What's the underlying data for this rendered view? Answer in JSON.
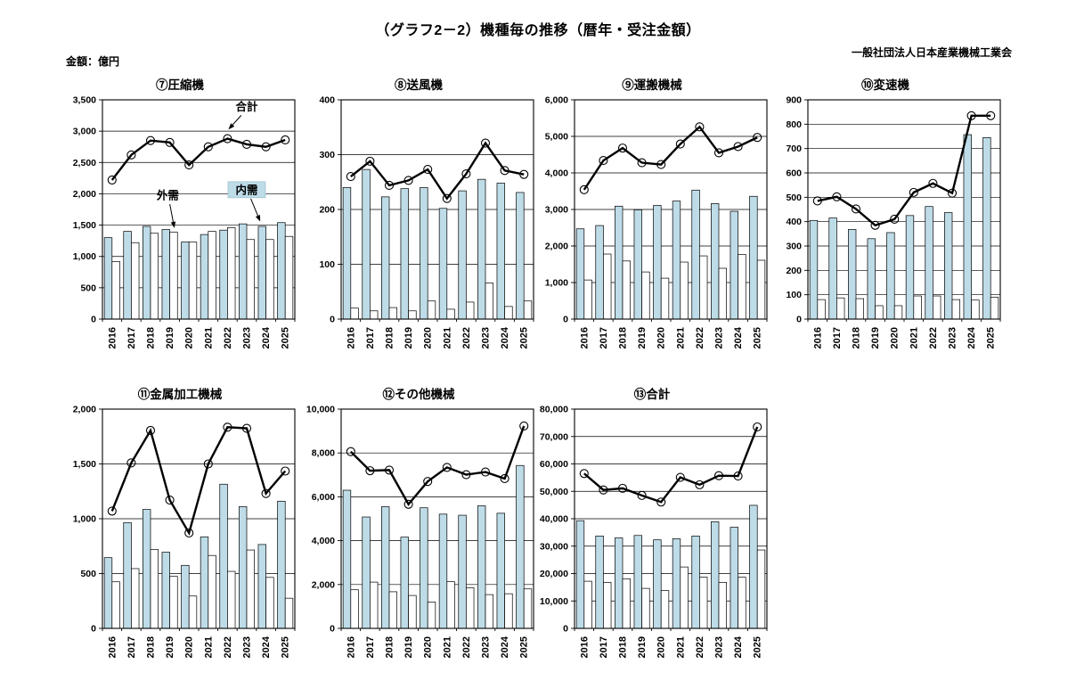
{
  "header": {
    "title": "（グラフ2－2）機種毎の推移（暦年・受注金額）",
    "org": "一般社団法人日本産業機械工業会",
    "unit": "金額：億円"
  },
  "years": [
    "2016",
    "2017",
    "2018",
    "2019",
    "2020",
    "2021",
    "2022",
    "2023",
    "2024",
    "2025"
  ],
  "colors": {
    "bar_domestic": "#bedce8",
    "bar_external": "#ffffff",
    "line_total": "#000000",
    "annotation_box": "#bedce8",
    "axis": "#000000"
  },
  "legend": {
    "domestic": "内需",
    "external": "外需",
    "total": "合計"
  },
  "chart_data": [
    {
      "type": "bar+line",
      "title": "⑦圧縮機",
      "ylim": [
        0,
        3500
      ],
      "ystep": 500,
      "categories": [
        "2016",
        "2017",
        "2018",
        "2019",
        "2020",
        "2021",
        "2022",
        "2023",
        "2024",
        "2025"
      ],
      "series": [
        {
          "name": "内需",
          "type": "bar",
          "values": [
            1300,
            1400,
            1480,
            1430,
            1230,
            1350,
            1420,
            1520,
            1480,
            1540
          ]
        },
        {
          "name": "外需",
          "type": "bar",
          "values": [
            920,
            1220,
            1370,
            1390,
            1230,
            1400,
            1460,
            1270,
            1270,
            1320
          ]
        },
        {
          "name": "合計",
          "type": "line",
          "values": [
            2220,
            2620,
            2850,
            2820,
            2460,
            2750,
            2880,
            2790,
            2750,
            2860
          ]
        }
      ],
      "annotations": [
        {
          "text": "合計",
          "fx": 0.75,
          "fy": 0.03,
          "tx": 0.655,
          "ty": 0.135,
          "boxed": false
        },
        {
          "text": "外需",
          "fx": 0.34,
          "fy": 0.435,
          "tx": 0.374,
          "ty": 0.585,
          "boxed": false
        },
        {
          "text": "内需",
          "fx": 0.75,
          "fy": 0.41,
          "tx": 0.82,
          "ty": 0.555,
          "boxed": true
        }
      ]
    },
    {
      "type": "bar+line",
      "title": "⑧送風機",
      "ylim": [
        0,
        400
      ],
      "ystep": 100,
      "categories": [
        "2016",
        "2017",
        "2018",
        "2019",
        "2020",
        "2021",
        "2022",
        "2023",
        "2024",
        "2025"
      ],
      "series": [
        {
          "name": "内需",
          "type": "bar",
          "values": [
            240,
            273,
            223,
            238,
            240,
            202,
            234,
            255,
            248,
            231
          ]
        },
        {
          "name": "外需",
          "type": "bar",
          "values": [
            20,
            15,
            21,
            15,
            33,
            18,
            31,
            66,
            23,
            33
          ]
        },
        {
          "name": "合計",
          "type": "line",
          "values": [
            260,
            288,
            244,
            253,
            273,
            220,
            265,
            321,
            271,
            264
          ]
        }
      ],
      "annotations": []
    },
    {
      "type": "bar+line",
      "title": "⑨運搬機械",
      "ylim": [
        0,
        6000
      ],
      "ystep": 1000,
      "categories": [
        "2016",
        "2017",
        "2018",
        "2019",
        "2020",
        "2021",
        "2022",
        "2023",
        "2024",
        "2025"
      ],
      "series": [
        {
          "name": "内需",
          "type": "bar",
          "values": [
            2470,
            2560,
            3090,
            2990,
            3110,
            3230,
            3530,
            3160,
            2950,
            3360
          ]
        },
        {
          "name": "外需",
          "type": "bar",
          "values": [
            1070,
            1780,
            1590,
            1290,
            1120,
            1560,
            1730,
            1390,
            1770,
            1610
          ]
        },
        {
          "name": "合計",
          "type": "line",
          "values": [
            3540,
            4340,
            4680,
            4280,
            4230,
            4790,
            5260,
            4550,
            4720,
            4970
          ]
        }
      ],
      "annotations": []
    },
    {
      "type": "bar+line",
      "title": "⑩変速機",
      "ylim": [
        0,
        900
      ],
      "ystep": 100,
      "categories": [
        "2016",
        "2017",
        "2018",
        "2019",
        "2020",
        "2021",
        "2022",
        "2023",
        "2024",
        "2025"
      ],
      "series": [
        {
          "name": "内需",
          "type": "bar",
          "values": [
            405,
            415,
            368,
            330,
            355,
            425,
            462,
            437,
            757,
            745
          ]
        },
        {
          "name": "外需",
          "type": "bar",
          "values": [
            80,
            87,
            84,
            55,
            55,
            95,
            95,
            80,
            78,
            90
          ]
        },
        {
          "name": "合計",
          "type": "line",
          "values": [
            485,
            502,
            452,
            385,
            410,
            520,
            557,
            517,
            835,
            835
          ]
        }
      ],
      "annotations": []
    },
    {
      "type": "bar+line",
      "title": "⑪金属加工機械",
      "ylim": [
        0,
        2000
      ],
      "ystep": 500,
      "categories": [
        "2016",
        "2017",
        "2018",
        "2019",
        "2020",
        "2021",
        "2022",
        "2023",
        "2024",
        "2025"
      ],
      "series": [
        {
          "name": "内需",
          "type": "bar",
          "values": [
            645,
            965,
            1085,
            695,
            575,
            835,
            1315,
            1110,
            765,
            1160
          ]
        },
        {
          "name": "外需",
          "type": "bar",
          "values": [
            425,
            545,
            720,
            475,
            295,
            665,
            520,
            715,
            465,
            275
          ]
        },
        {
          "name": "合計",
          "type": "line",
          "values": [
            1070,
            1510,
            1805,
            1170,
            870,
            1500,
            1835,
            1825,
            1230,
            1435
          ]
        }
      ],
      "annotations": []
    },
    {
      "type": "bar+line",
      "title": "⑫その他機械",
      "ylim": [
        0,
        10000
      ],
      "ystep": 2000,
      "categories": [
        "2016",
        "2017",
        "2018",
        "2019",
        "2020",
        "2021",
        "2022",
        "2023",
        "2024",
        "2025"
      ],
      "series": [
        {
          "name": "内需",
          "type": "bar",
          "values": [
            6300,
            5080,
            5550,
            4160,
            5500,
            5210,
            5160,
            5590,
            5250,
            7430
          ]
        },
        {
          "name": "外需",
          "type": "bar",
          "values": [
            1760,
            2110,
            1670,
            1500,
            1200,
            2130,
            1850,
            1540,
            1580,
            1800
          ]
        },
        {
          "name": "合計",
          "type": "line",
          "values": [
            8060,
            7190,
            7220,
            5660,
            6700,
            7340,
            7010,
            7130,
            6830,
            9230
          ]
        }
      ],
      "annotations": []
    },
    {
      "type": "bar+line",
      "title": "⑬合計",
      "ylim": [
        0,
        80000
      ],
      "ystep": 10000,
      "categories": [
        "2016",
        "2017",
        "2018",
        "2019",
        "2020",
        "2021",
        "2022",
        "2023",
        "2024",
        "2025"
      ],
      "series": [
        {
          "name": "内需",
          "type": "bar",
          "values": [
            39300,
            33700,
            33000,
            33900,
            32300,
            32700,
            33700,
            38900,
            36900,
            44900
          ]
        },
        {
          "name": "外需",
          "type": "bar",
          "values": [
            17200,
            16800,
            18100,
            14600,
            13800,
            22400,
            18700,
            16800,
            18700,
            28600
          ]
        },
        {
          "name": "合計",
          "type": "line",
          "values": [
            56500,
            50500,
            51100,
            48500,
            46100,
            55100,
            52400,
            55700,
            55600,
            73500
          ]
        }
      ],
      "annotations": []
    }
  ]
}
